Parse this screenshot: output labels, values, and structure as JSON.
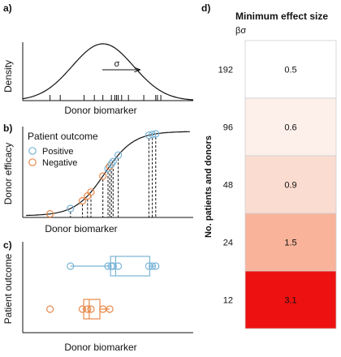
{
  "panel_a": {
    "tag": "a)",
    "ylabel": "Density",
    "xlabel": "Donor biomarker",
    "sigma": "σ",
    "rug_x": [
      0.16,
      0.22,
      0.36,
      0.42,
      0.47,
      0.52,
      0.54,
      0.55,
      0.56,
      0.58,
      0.62,
      0.71,
      0.78,
      0.79,
      0.81
    ]
  },
  "panel_b": {
    "tag": "b)",
    "ylabel": "Donor efficacy",
    "xlabel": "Donor biomarker",
    "legend_title": "Patient outcome",
    "legend_positive": "Positive",
    "legend_negative": "Negative",
    "colors": {
      "positive": "#7ab4d6",
      "negative": "#e8884a"
    },
    "points": [
      {
        "x": 0.16,
        "o": "negative"
      },
      {
        "x": 0.28,
        "o": "positive"
      },
      {
        "x": 0.35,
        "o": "negative"
      },
      {
        "x": 0.38,
        "o": "negative"
      },
      {
        "x": 0.4,
        "o": "negative"
      },
      {
        "x": 0.47,
        "o": "negative"
      },
      {
        "x": 0.5,
        "o": "positive"
      },
      {
        "x": 0.51,
        "o": "negative"
      },
      {
        "x": 0.52,
        "o": "positive"
      },
      {
        "x": 0.53,
        "o": "positive"
      },
      {
        "x": 0.56,
        "o": "positive"
      },
      {
        "x": 0.74,
        "o": "positive"
      },
      {
        "x": 0.76,
        "o": "positive"
      },
      {
        "x": 0.78,
        "o": "positive"
      }
    ]
  },
  "panel_c": {
    "tag": "c)",
    "ylabel": "Patient outcome",
    "xlabel": "Donor biomarker",
    "positive_x": [
      0.28,
      0.5,
      0.52,
      0.53,
      0.56,
      0.74,
      0.76,
      0.78
    ],
    "negative_x": [
      0.16,
      0.35,
      0.38,
      0.4,
      0.47,
      0.51
    ]
  },
  "panel_d": {
    "tag": "d)",
    "title": "Minimum effect size",
    "subtitle": "βσ",
    "ylabel": "No. patients and donors",
    "rows": [
      {
        "n": "192",
        "value": "0.5",
        "color": "#ffffff"
      },
      {
        "n": "96",
        "value": "0.6",
        "color": "#fdf0ea"
      },
      {
        "n": "48",
        "value": "0.9",
        "color": "#fbdcd0"
      },
      {
        "n": "24",
        "value": "1.5",
        "color": "#f8b39a"
      },
      {
        "n": "12",
        "value": "3.1",
        "color": "#ee1111"
      }
    ]
  }
}
